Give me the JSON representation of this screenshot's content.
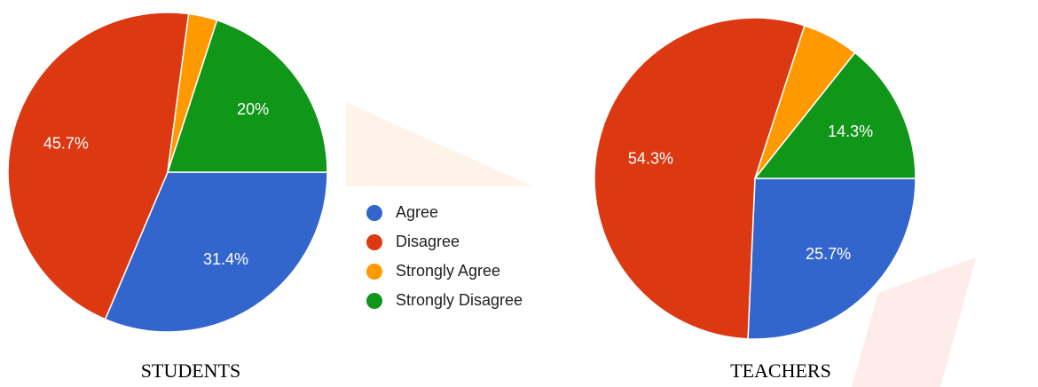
{
  "legend": {
    "labels": [
      "Agree",
      "Disagree",
      "Strongly Agree",
      "Strongly Disagree"
    ],
    "colors": [
      "#3366cc",
      "#dc3912",
      "#ff9900",
      "#109618"
    ]
  },
  "chart_data": [
    {
      "type": "pie",
      "title": "STUDENTS",
      "values": [
        31.4,
        45.7,
        2.9,
        20
      ],
      "value_labels": [
        "31.4%",
        "45.7%",
        null,
        "20%"
      ]
    },
    {
      "type": "pie",
      "title": "TEACHERS",
      "values": [
        25.7,
        54.3,
        5.7,
        14.3
      ],
      "value_labels": [
        "25.7%",
        "54.3%",
        null,
        "14.3%"
      ]
    }
  ]
}
